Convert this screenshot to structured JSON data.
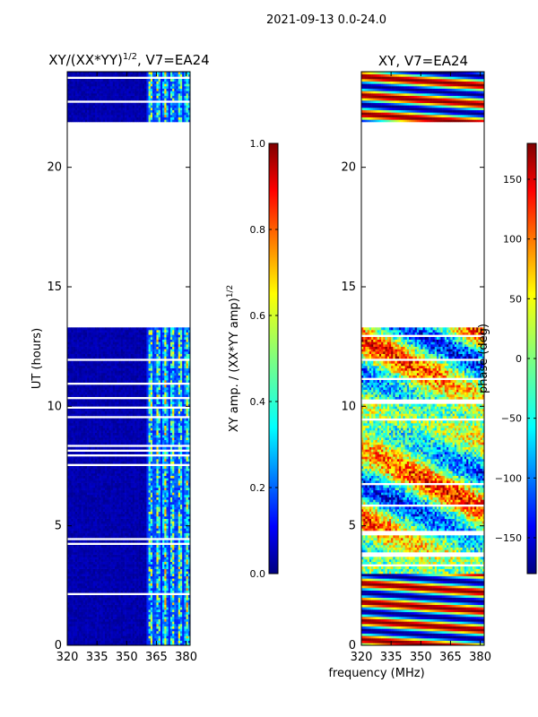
{
  "figure": {
    "suptitle": "2021-09-13 0.0-24.0",
    "shared_xlabel": "frequency (MHz)"
  },
  "chart_data": [
    {
      "type": "heatmap",
      "title": "XY/(XX*YY)",
      "title_sup": "1/2",
      "title_suffix": ", V7=EA24",
      "xlabel": "",
      "ylabel": "UT (hours)",
      "xlim": [
        320,
        382
      ],
      "ylim": [
        0,
        24
      ],
      "xticks": [
        320,
        335,
        350,
        365,
        380
      ],
      "yticks": [
        0,
        5,
        10,
        15,
        20
      ],
      "data_present_hours": [
        [
          0.0,
          13.3
        ],
        [
          21.9,
          24.0
        ]
      ],
      "empty_hours": [
        [
          13.3,
          21.9
        ]
      ],
      "colorbar": {
        "label": "XY amp. / (XX*YY amp)",
        "label_sup": "1/2",
        "range": [
          0.0,
          1.0
        ],
        "ticks": [
          "0.0",
          "0.2",
          "0.4",
          "0.6",
          "0.8",
          "1.0"
        ],
        "colormap": "jet"
      }
    },
    {
      "type": "heatmap",
      "title": "XY, V7=EA24",
      "xlabel": "frequency (MHz)",
      "ylabel": "",
      "xlim": [
        320,
        382
      ],
      "ylim": [
        0,
        24
      ],
      "xticks": [
        320,
        335,
        350,
        365,
        380
      ],
      "yticks": [
        0,
        5,
        10,
        15,
        20
      ],
      "data_present_hours": [
        [
          0.0,
          13.3
        ],
        [
          21.9,
          24.0
        ]
      ],
      "empty_hours": [
        [
          13.3,
          21.9
        ]
      ],
      "colorbar": {
        "label": "phase (deg)",
        "range": [
          -180,
          180
        ],
        "ticks": [
          "−150",
          "−100",
          "−50",
          "0",
          "50",
          "100",
          "150"
        ],
        "tick_values": [
          -150,
          -100,
          -50,
          0,
          50,
          100,
          150
        ],
        "colormap": "jet"
      }
    }
  ],
  "colors": {
    "jet": [
      "#00007f",
      "#0000ff",
      "#007fff",
      "#00ffff",
      "#7fff7f",
      "#ffff00",
      "#ff7f00",
      "#ff0000",
      "#7f0000"
    ],
    "background": "#ffffff",
    "axis": "#000000"
  }
}
